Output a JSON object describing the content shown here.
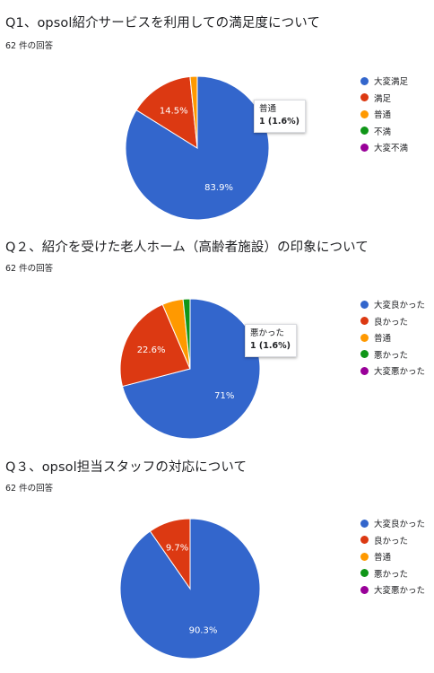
{
  "colors": [
    "#3366cc",
    "#dc3912",
    "#ff9900",
    "#109618",
    "#990099"
  ],
  "questions": [
    {
      "title": "Q1、opsol紹介サービスを利用しての満足度について",
      "count": "62 件の回答",
      "tooltip": {
        "label": "普通",
        "value": "1 (1.6%)"
      }
    },
    {
      "title": "Q２、紹介を受けた老人ホーム（高齢者施設）の印象について",
      "count": "62 件の回答",
      "tooltip": {
        "label": "悪かった",
        "value": "1 (1.6%)"
      }
    },
    {
      "title": "Q３、opsol担当スタッフの対応について",
      "count": "62 件の回答"
    }
  ],
  "chart_data": [
    {
      "type": "pie",
      "categories": [
        "大変満足",
        "満足",
        "普通",
        "不満",
        "大変不満"
      ],
      "values": [
        52,
        9,
        1,
        0,
        0
      ],
      "slice_labels": [
        "83.9%",
        "14.5%",
        "",
        "",
        ""
      ]
    },
    {
      "type": "pie",
      "categories": [
        "大変良かった",
        "良かった",
        "普通",
        "悪かった",
        "大変悪かった"
      ],
      "values": [
        44,
        14,
        3,
        1,
        0
      ],
      "slice_labels": [
        "71%",
        "22.6%",
        "",
        "",
        ""
      ]
    },
    {
      "type": "pie",
      "categories": [
        "大変良かった",
        "良かった",
        "普通",
        "悪かった",
        "大変悪かった"
      ],
      "values": [
        56,
        6,
        0,
        0,
        0
      ],
      "slice_labels": [
        "90.3%",
        "9.7%",
        "",
        "",
        ""
      ]
    }
  ]
}
